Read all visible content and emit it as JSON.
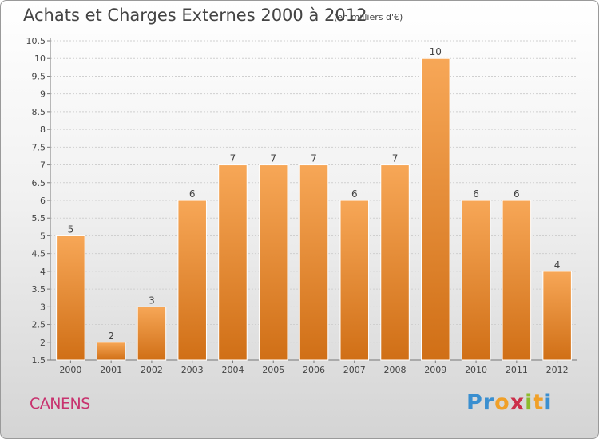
{
  "title": "Achats et Charges Externes 2000 à 2012",
  "subtitle": "(en milliers d'€)",
  "commune": "CANENS",
  "brand": {
    "letters": [
      "P",
      "r",
      "o",
      "x",
      "i",
      "t",
      "i"
    ],
    "colors": [
      "#3a8fd0",
      "#3a8fd0",
      "#f0a028",
      "#cc2f4a",
      "#8dbb2c",
      "#f0a028",
      "#3a8fd0"
    ]
  },
  "colors": {
    "bar_top": "#f7a757",
    "bar_bottom": "#d06f16",
    "bar_edge": "#ffffff",
    "text": "#444444"
  },
  "chart_data": {
    "type": "bar",
    "categories": [
      "2000",
      "2001",
      "2002",
      "2003",
      "2004",
      "2005",
      "2006",
      "2007",
      "2008",
      "2009",
      "2010",
      "2011",
      "2012"
    ],
    "values": [
      5,
      2,
      3,
      6,
      7,
      7,
      7,
      6,
      7,
      10,
      6,
      6,
      4
    ],
    "data_labels": [
      "5",
      "2",
      "3",
      "6",
      "7",
      "7",
      "7",
      "6",
      "7",
      "10",
      "6",
      "6",
      "4"
    ],
    "yticks": [
      "1.5",
      "2",
      "2.5",
      "3",
      "3.5",
      "4",
      "4.5",
      "5",
      "5.5",
      "6",
      "6.5",
      "7",
      "7.5",
      "8",
      "8.5",
      "9",
      "9.5",
      "10",
      "10.5"
    ],
    "ylim": [
      1.5,
      10.5
    ],
    "grid": true,
    "xlabel": "",
    "ylabel": ""
  }
}
